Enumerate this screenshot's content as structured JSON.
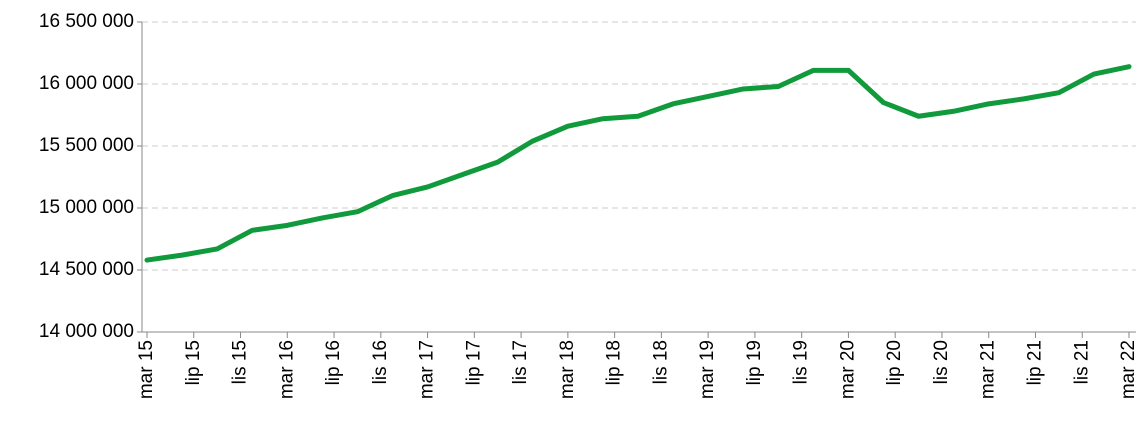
{
  "chart_data": {
    "type": "line",
    "x": [
      0,
      3,
      6,
      9,
      12,
      15,
      18,
      21,
      24,
      27,
      30,
      33,
      36,
      39,
      42,
      45,
      48,
      51,
      54,
      57,
      60,
      63,
      66,
      69,
      72,
      75,
      78,
      81,
      84
    ],
    "series": [
      {
        "color": "#109a3c",
        "values": [
          14580000,
          14620000,
          14670000,
          14820000,
          14860000,
          14920000,
          14970000,
          15100000,
          15170000,
          15270000,
          15370000,
          15540000,
          15660000,
          15720000,
          15740000,
          15840000,
          15900000,
          15960000,
          15980000,
          16110000,
          16110000,
          15850000,
          15740000,
          15780000,
          15840000,
          15880000,
          15930000,
          16080000,
          16140000
        ]
      }
    ],
    "xlim": [
      0,
      84
    ],
    "xticks": [
      {
        "value": 0,
        "label": "mar 15"
      },
      {
        "value": 4,
        "label": "lip 15"
      },
      {
        "value": 8,
        "label": "lis 15"
      },
      {
        "value": 12,
        "label": "mar 16"
      },
      {
        "value": 16,
        "label": "lip 16"
      },
      {
        "value": 20,
        "label": "lis 16"
      },
      {
        "value": 24,
        "label": "mar 17"
      },
      {
        "value": 28,
        "label": "lip 17"
      },
      {
        "value": 32,
        "label": "lis 17"
      },
      {
        "value": 36,
        "label": "mar 18"
      },
      {
        "value": 40,
        "label": "lip 18"
      },
      {
        "value": 44,
        "label": "lis 18"
      },
      {
        "value": 48,
        "label": "mar 19"
      },
      {
        "value": 52,
        "label": "lip 19"
      },
      {
        "value": 56,
        "label": "lis 19"
      },
      {
        "value": 60,
        "label": "mar 20"
      },
      {
        "value": 64,
        "label": "lip 20"
      },
      {
        "value": 68,
        "label": "lis 20"
      },
      {
        "value": 72,
        "label": "mar 21"
      },
      {
        "value": 76,
        "label": "lip 21"
      },
      {
        "value": 80,
        "label": "lis 21"
      },
      {
        "value": 84,
        "label": "mar 22"
      }
    ],
    "ylim": [
      14000000,
      16500000
    ],
    "yticks": [
      {
        "value": 14000000,
        "label": "14 000 000"
      },
      {
        "value": 14500000,
        "label": "14 500 000"
      },
      {
        "value": 15000000,
        "label": "15 000 000"
      },
      {
        "value": 15500000,
        "label": "15 500 000"
      },
      {
        "value": 16000000,
        "label": "16 000 000"
      },
      {
        "value": 16500000,
        "label": "16 500 000"
      }
    ],
    "grid": true
  }
}
